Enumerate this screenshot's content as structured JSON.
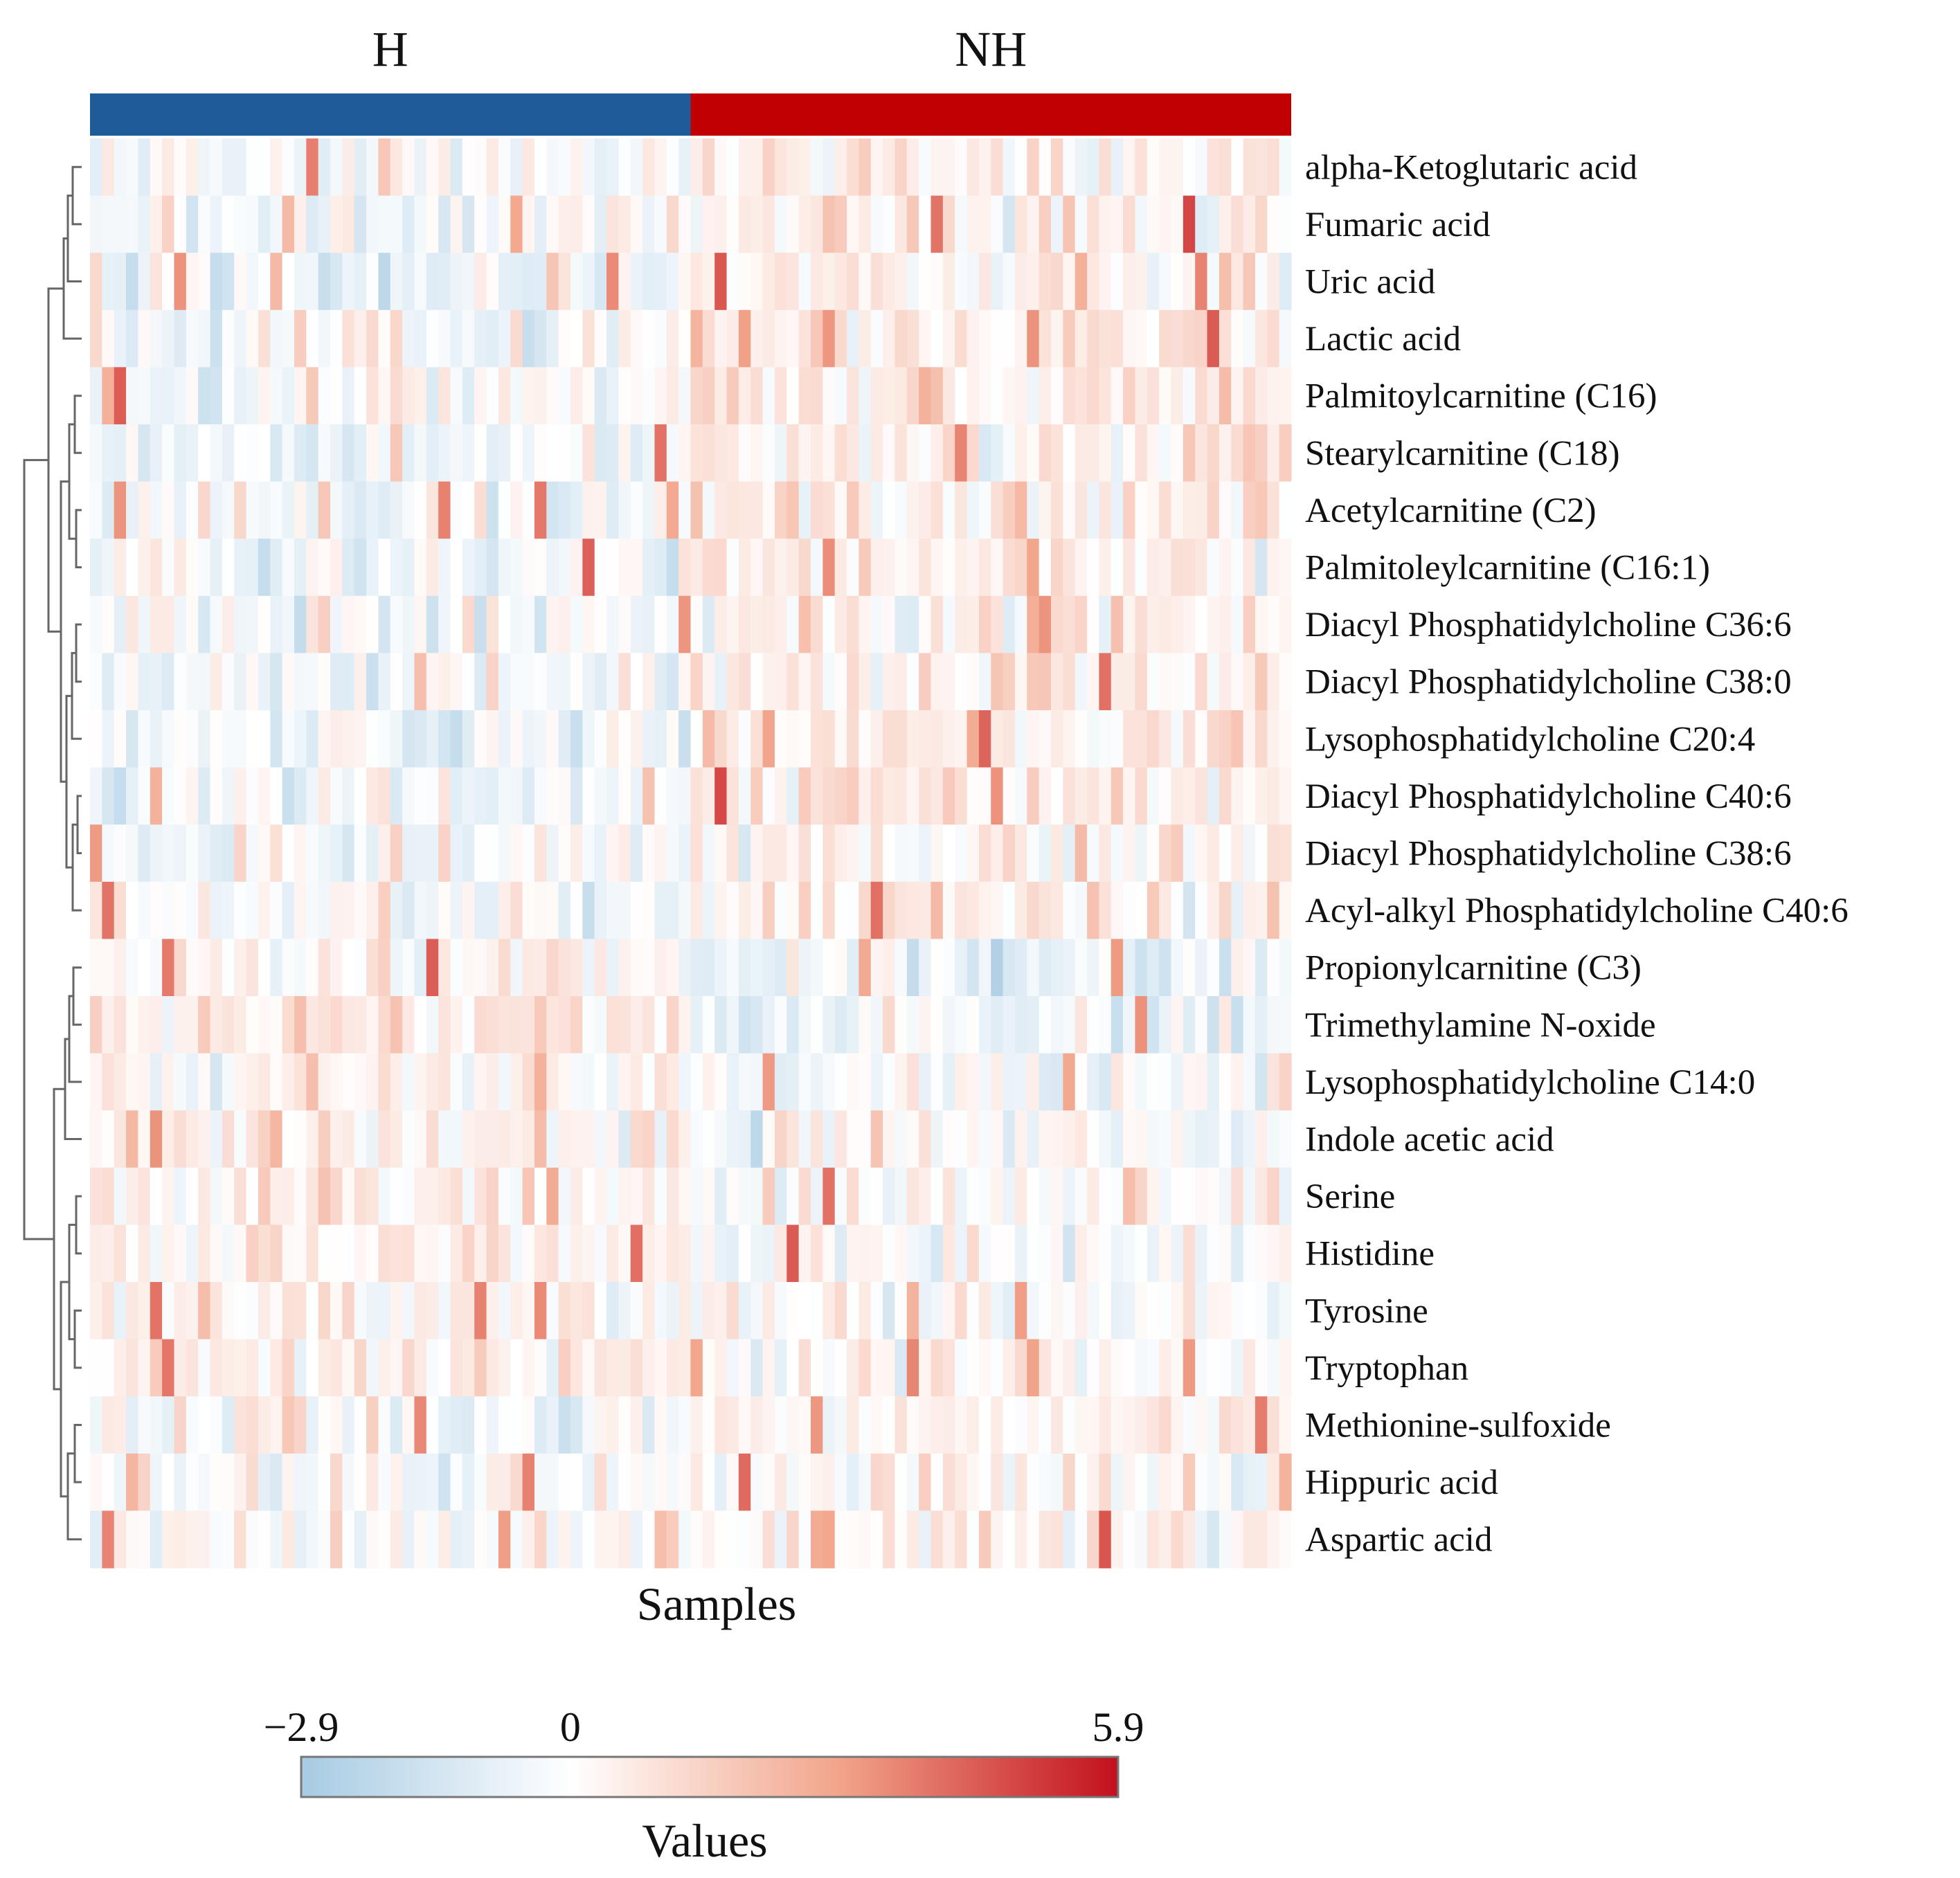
{
  "chart_data": {
    "type": "heatmap",
    "title": "",
    "xlabel": "Samples",
    "ylabel": "",
    "groups": [
      {
        "name": "H",
        "n_samples": 50,
        "color": "#1f5b99"
      },
      {
        "name": "NH",
        "n_samples": 50,
        "color": "#c00000"
      }
    ],
    "rows": [
      "alpha-Ketoglutaric acid",
      "Fumaric acid",
      "Uric acid",
      "Lactic acid",
      "Palmitoylcarnitine (C16)",
      "Stearylcarnitine (C18)",
      "Acetylcarnitine (C2)",
      "Palmitoleylcarnitine (C16:1)",
      "Diacyl Phosphatidylcholine C36:6",
      "Diacyl Phosphatidylcholine C38:0",
      "Lysophosphatidylcholine C20:4",
      "Diacyl Phosphatidylcholine C40:6",
      "Diacyl Phosphatidylcholine C38:6",
      "Acyl-alkyl Phosphatidylcholine C40:6",
      "Propionylcarnitine (C3)",
      "Trimethylamine N-oxide",
      "Lysophosphatidylcholine C14:0",
      "Indole acetic acid",
      "Serine",
      "Histidine",
      "Tyrosine",
      "Tryptophan",
      "Methionine-sulfoxide",
      "Hippuric acid",
      "Aspartic acid"
    ],
    "row_group_tendency": [
      [
        -0.2,
        0.4
      ],
      [
        -0.1,
        0.4
      ],
      [
        -0.3,
        0.3
      ],
      [
        -0.2,
        0.5
      ],
      [
        -0.2,
        0.6
      ],
      [
        -0.3,
        0.6
      ],
      [
        -0.2,
        0.5
      ],
      [
        -0.3,
        0.5
      ],
      [
        -0.2,
        0.5
      ],
      [
        -0.2,
        0.5
      ],
      [
        -0.3,
        0.5
      ],
      [
        -0.3,
        0.6
      ],
      [
        -0.3,
        0.6
      ],
      [
        -0.2,
        0.6
      ],
      [
        0.5,
        -0.5
      ],
      [
        0.6,
        -0.6
      ],
      [
        0.4,
        -0.2
      ],
      [
        0.4,
        -0.1
      ],
      [
        0.3,
        0.1
      ],
      [
        0.4,
        0.0
      ],
      [
        0.3,
        0.0
      ],
      [
        0.4,
        0.0
      ],
      [
        -0.1,
        0.5
      ],
      [
        0.0,
        0.4
      ],
      [
        0.0,
        0.4
      ]
    ],
    "value_range": [
      -2.9,
      5.9
    ],
    "colorbar": {
      "label": "Values",
      "ticks": [
        -2.9,
        0,
        5.9
      ],
      "tick_labels": [
        "−2.9",
        "0",
        "5.9"
      ],
      "colors": [
        "#a7cbe3",
        "#ffffff",
        "#f2a48a",
        "#c2101e"
      ]
    },
    "dendrogram": "row clustering (left side)"
  }
}
